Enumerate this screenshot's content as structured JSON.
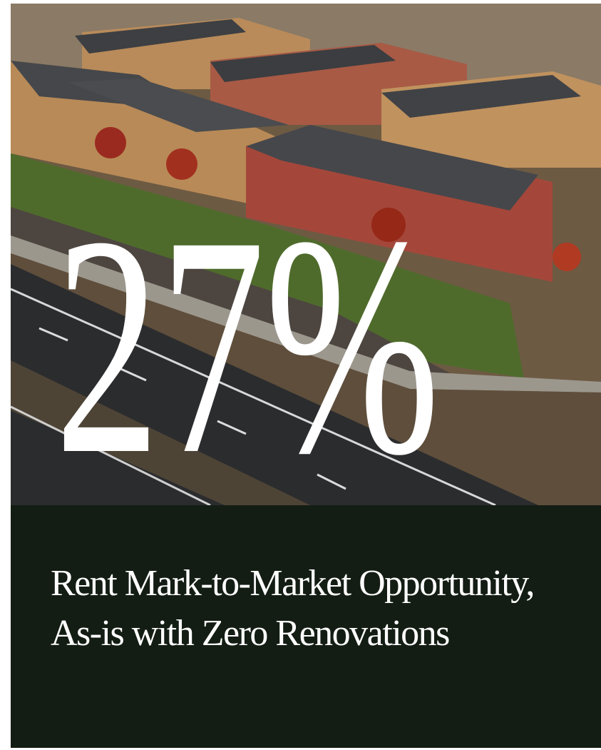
{
  "stat": "27%",
  "caption": "Rent Mark-to-Market Opportunity, As-is with Zero Renovations"
}
